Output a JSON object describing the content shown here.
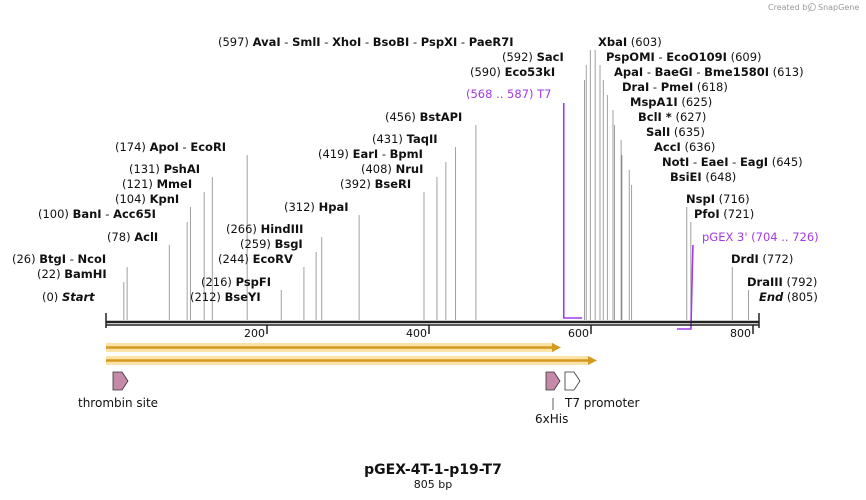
{
  "credit": {
    "text": "Created by",
    "brand": "SnapGene"
  },
  "title": "pGEX-4T-1-p19-T7",
  "subtitle": "805 bp",
  "ticks": [
    "200",
    "400",
    "600",
    "800"
  ],
  "sites": [
    {
      "pos": "(0)",
      "names": [
        {
          "text": "Start",
          "italic": true
        }
      ]
    },
    {
      "pos": "(22)",
      "names": [
        {
          "text": "BamHI"
        }
      ]
    },
    {
      "pos": "(26)",
      "names": [
        {
          "text": "BtgI"
        },
        {
          "text": "NcoI"
        }
      ]
    },
    {
      "pos": "(78)",
      "names": [
        {
          "text": "AclI"
        }
      ]
    },
    {
      "pos": "(100)",
      "names": [
        {
          "text": "BanI"
        },
        {
          "text": "Acc65I"
        }
      ]
    },
    {
      "pos": "(104)",
      "names": [
        {
          "text": "KpnI"
        }
      ]
    },
    {
      "pos": "(121)",
      "names": [
        {
          "text": "MmeI"
        }
      ]
    },
    {
      "pos": "(131)",
      "names": [
        {
          "text": "PshAI"
        }
      ]
    },
    {
      "pos": "(174)",
      "names": [
        {
          "text": "ApoI"
        },
        {
          "text": "EcoRI"
        }
      ]
    },
    {
      "pos": "(212)",
      "names": [
        {
          "text": "BseYI"
        }
      ]
    },
    {
      "pos": "(216)",
      "names": [
        {
          "text": "PspFI"
        }
      ]
    },
    {
      "pos": "(244)",
      "names": [
        {
          "text": "EcoRV"
        }
      ]
    },
    {
      "pos": "(259)",
      "names": [
        {
          "text": "BsgI"
        }
      ]
    },
    {
      "pos": "(266)",
      "names": [
        {
          "text": "HindIII"
        }
      ]
    },
    {
      "pos": "(312)",
      "names": [
        {
          "text": "HpaI"
        }
      ]
    },
    {
      "pos": "(392)",
      "names": [
        {
          "text": "BseRI"
        }
      ]
    },
    {
      "pos": "(408)",
      "names": [
        {
          "text": "NruI"
        }
      ]
    },
    {
      "pos": "(419)",
      "names": [
        {
          "text": "EarI"
        },
        {
          "text": "BpmI"
        }
      ]
    },
    {
      "pos": "(431)",
      "names": [
        {
          "text": "TaqII"
        }
      ]
    },
    {
      "pos": "(456)",
      "names": [
        {
          "text": "BstAPI"
        }
      ]
    },
    {
      "pos": "(590)",
      "names": [
        {
          "text": "Eco53kI"
        }
      ]
    },
    {
      "pos": "(592)",
      "names": [
        {
          "text": "SacI"
        }
      ]
    },
    {
      "pos": "(597)",
      "names": [
        {
          "text": "AvaI"
        },
        {
          "text": "SmlI"
        },
        {
          "text": "XhoI"
        },
        {
          "text": "BsoBI"
        },
        {
          "text": "PspXI"
        },
        {
          "text": "PaeR7I"
        }
      ]
    },
    {
      "pos": "(603)",
      "names": [
        {
          "text": "XbaI"
        }
      ]
    },
    {
      "pos": "(609)",
      "names": [
        {
          "text": "PspOMI"
        },
        {
          "text": "EcoO109I"
        }
      ]
    },
    {
      "pos": "(613)",
      "names": [
        {
          "text": "ApaI"
        },
        {
          "text": "BaeGI"
        },
        {
          "text": "Bme1580I"
        }
      ]
    },
    {
      "pos": "(618)",
      "names": [
        {
          "text": "DraI"
        },
        {
          "text": "PmeI"
        }
      ]
    },
    {
      "pos": "(625)",
      "names": [
        {
          "text": "MspA1I"
        }
      ]
    },
    {
      "pos": "(627)",
      "names": [
        {
          "text": "BclI *"
        }
      ]
    },
    {
      "pos": "(635)",
      "names": [
        {
          "text": "SalI"
        }
      ]
    },
    {
      "pos": "(636)",
      "names": [
        {
          "text": "AccI"
        }
      ]
    },
    {
      "pos": "(645)",
      "names": [
        {
          "text": "NotI"
        },
        {
          "text": "EaeI"
        },
        {
          "text": "EagI"
        }
      ]
    },
    {
      "pos": "(648)",
      "names": [
        {
          "text": "BsiEI"
        }
      ]
    },
    {
      "pos": "(716)",
      "names": [
        {
          "text": "NspI"
        }
      ]
    },
    {
      "pos": "(721)",
      "names": [
        {
          "text": "PfoI"
        }
      ]
    },
    {
      "pos": "(772)",
      "names": [
        {
          "text": "DrdI"
        }
      ]
    },
    {
      "pos": "(792)",
      "names": [
        {
          "text": "DraIII"
        }
      ]
    },
    {
      "pos": "(805)",
      "names": [
        {
          "text": "End",
          "italic": true
        }
      ]
    }
  ],
  "primers": [
    {
      "name": "T7",
      "range": "(568 .. 587)"
    },
    {
      "name": "pGEX 3'",
      "range": "(704 .. 726)"
    }
  ],
  "features": [
    {
      "name": "thrombin site"
    },
    {
      "name": "6xHis"
    },
    {
      "name": "T7 promoter"
    }
  ],
  "colors": {
    "backbone": "#222222",
    "orf_fill": "#f5c04a",
    "orf_glow": "#fbe3a8",
    "feature_fill": "#c58aa8",
    "primer": "#a23be6",
    "line": "#888888"
  }
}
